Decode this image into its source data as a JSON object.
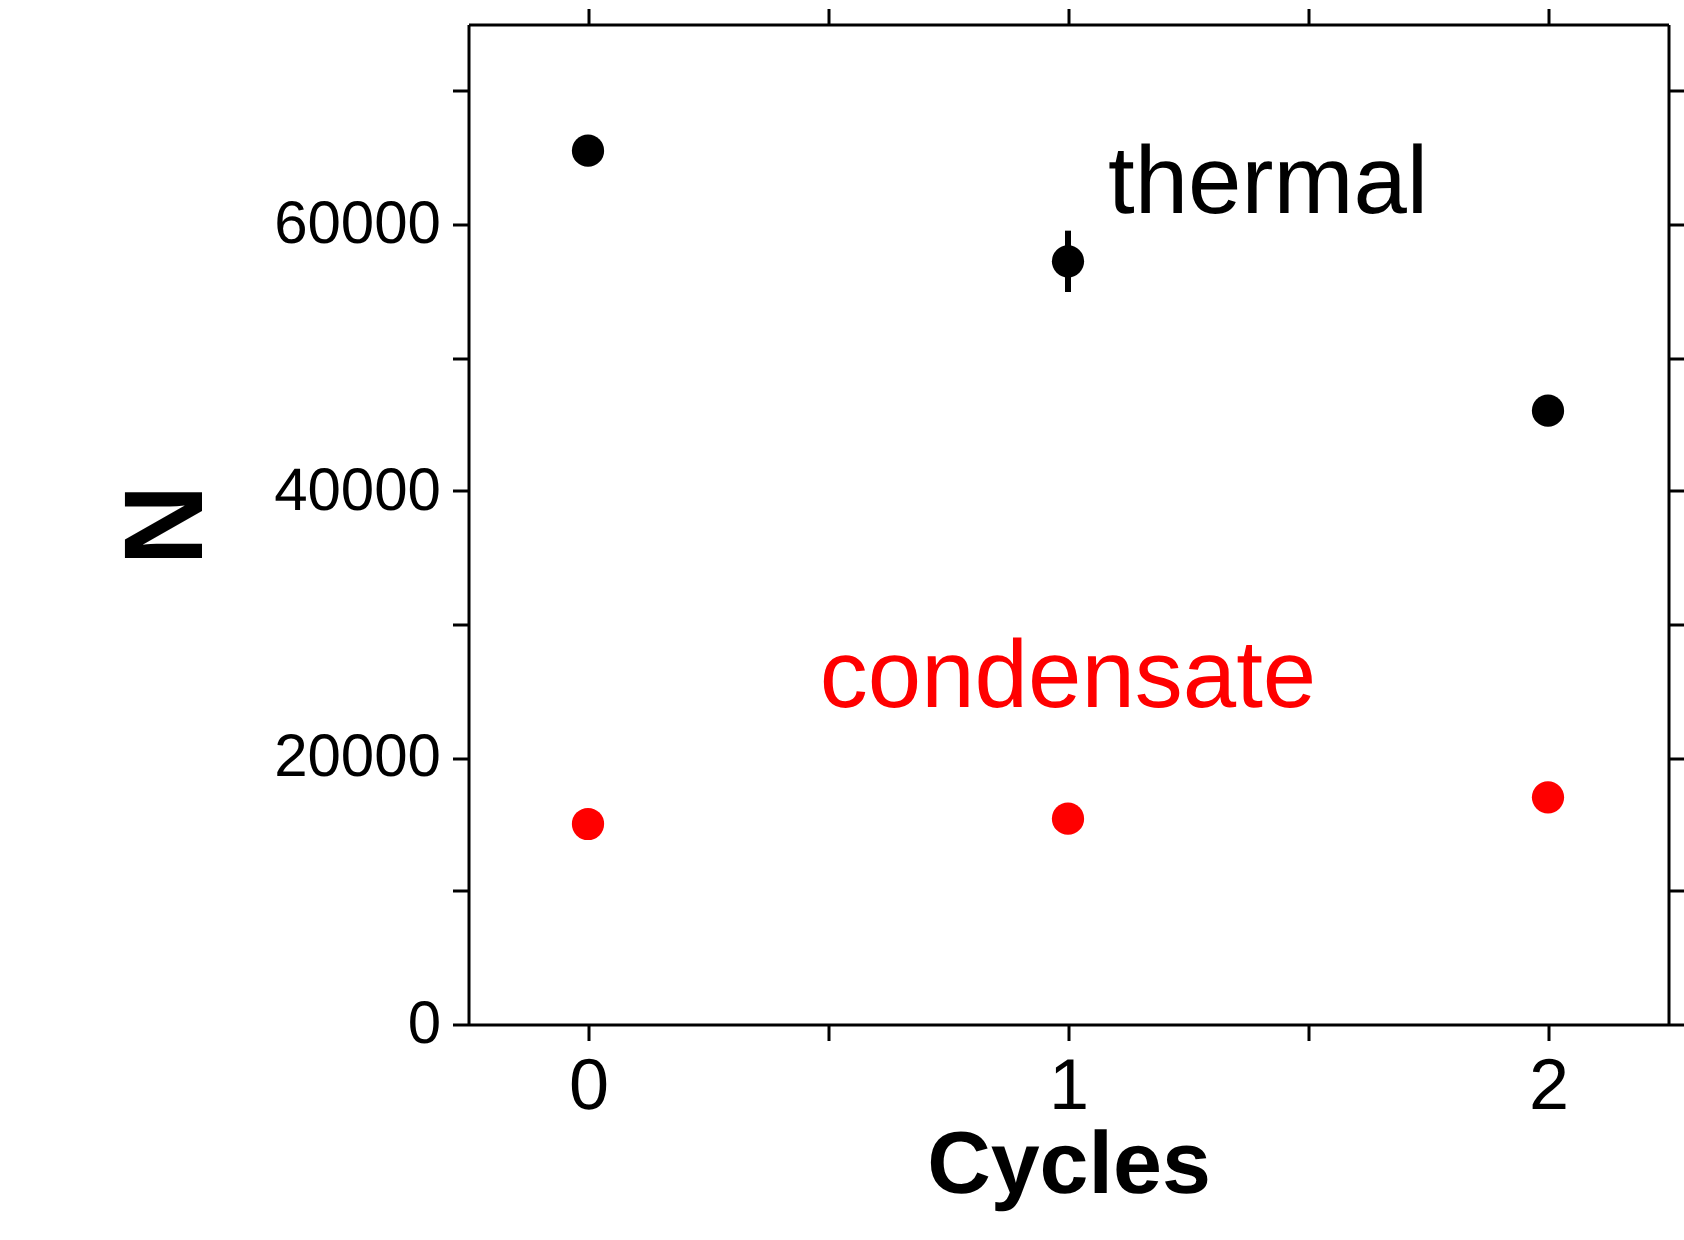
{
  "chart_data": {
    "type": "scatter",
    "xlabel": "Cycles",
    "ylabel": "N",
    "x": [
      0,
      1,
      2
    ],
    "series": [
      {
        "name": "thermal",
        "color": "#000000",
        "values": [
          65500,
          57200,
          46000
        ],
        "errors": [
          null,
          2300,
          800
        ]
      },
      {
        "name": "condensate",
        "color": "#ff0000",
        "values": [
          15000,
          15400,
          17000
        ]
      }
    ],
    "xlim": [
      -0.25,
      2.25
    ],
    "xticks": [
      0,
      {
        "value": 0.5,
        "label": null
      },
      1,
      {
        "value": 1.5,
        "label": null
      },
      2
    ],
    "ylim": [
      0,
      75000
    ],
    "yticks": [
      0,
      {
        "value": 10000,
        "label": null
      },
      20000,
      {
        "value": 30000,
        "label": null
      },
      40000,
      {
        "value": 50000,
        "label": null
      },
      60000,
      {
        "value": 70000,
        "label": null
      }
    ],
    "marker": "circle",
    "grid": false
  }
}
